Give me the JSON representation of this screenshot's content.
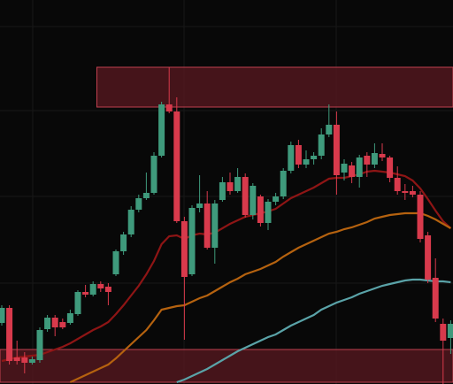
{
  "chart_data": {
    "type": "candlestick",
    "ylim": [
      0,
      434
    ],
    "up_color": "#3f9a7c",
    "down_color": "#d83a4c",
    "open": [
      69,
      86,
      30,
      30,
      24,
      27,
      62,
      75,
      70,
      69,
      79,
      104,
      101,
      113,
      110,
      124,
      150,
      169,
      197,
      210,
      216,
      258,
      316,
      308,
      184,
      124,
      199,
      204,
      154,
      208,
      228,
      218,
      234,
      191,
      212,
      182,
      206,
      212,
      241,
      270,
      248,
      254,
      258,
      282,
      293,
      239,
      247,
      234,
      258,
      248,
      260,
      256,
      233,
      218,
      218,
      214,
      168,
      120,
      68,
      52
    ],
    "high": [
      89,
      89,
      49,
      36,
      31,
      64,
      78,
      78,
      74,
      84,
      106,
      112,
      116,
      116,
      114,
      152,
      172,
      201,
      214,
      239,
      262,
      319,
      358,
      324,
      189,
      202,
      236,
      218,
      208,
      234,
      239,
      244,
      238,
      227,
      214,
      209,
      216,
      244,
      274,
      276,
      264,
      262,
      289,
      316,
      308,
      254,
      251,
      259,
      262,
      272,
      272,
      258,
      246,
      226,
      224,
      218,
      172,
      142,
      74,
      72
    ],
    "low": [
      66,
      22,
      22,
      12,
      22,
      24,
      59,
      54,
      62,
      67,
      77,
      98,
      99,
      104,
      89,
      122,
      146,
      166,
      194,
      208,
      214,
      256,
      306,
      182,
      50,
      122,
      194,
      152,
      136,
      206,
      214,
      216,
      188,
      186,
      178,
      174,
      202,
      209,
      238,
      244,
      244,
      248,
      254,
      279,
      214,
      230,
      227,
      222,
      234,
      244,
      252,
      228,
      214,
      208,
      211,
      160,
      114,
      70,
      0,
      34
    ],
    "close": [
      86,
      26,
      26,
      24,
      28,
      61,
      75,
      64,
      64,
      80,
      104,
      101,
      113,
      108,
      104,
      150,
      169,
      197,
      210,
      216,
      258,
      316,
      308,
      184,
      121,
      199,
      204,
      154,
      204,
      228,
      218,
      234,
      191,
      224,
      182,
      206,
      212,
      241,
      270,
      248,
      254,
      258,
      282,
      293,
      236,
      249,
      234,
      256,
      248,
      261,
      256,
      233,
      218,
      216,
      214,
      164,
      118,
      74,
      49,
      68
    ],
    "series": [
      {
        "color": "#8e1515",
        "values": [
          26,
          28,
          30,
          31,
          32,
          33,
          36,
          39,
          42,
          46,
          51,
          56,
          61,
          65,
          70,
          79,
          89,
          100,
          111,
          124,
          139,
          158,
          167,
          168,
          164,
          168,
          170,
          169,
          171,
          176,
          181,
          185,
          189,
          191,
          193,
          195,
          198,
          204,
          210,
          214,
          218,
          222,
          227,
          232,
          233,
          233,
          235,
          237,
          240,
          241,
          240,
          239,
          237,
          235,
          230,
          221,
          209,
          196,
          184,
          176
        ]
      },
      {
        "color": "#b5620f",
        "values": [
          null,
          null,
          null,
          null,
          null,
          null,
          null,
          null,
          null,
          2,
          6,
          10,
          14,
          18,
          22,
          29,
          37,
          45,
          53,
          61,
          72,
          84,
          86,
          88,
          89,
          93,
          97,
          100,
          105,
          110,
          115,
          119,
          124,
          127,
          130,
          134,
          138,
          144,
          149,
          154,
          158,
          162,
          166,
          170,
          172,
          175,
          177,
          180,
          183,
          187,
          189,
          191,
          192,
          193,
          193,
          193,
          190,
          186,
          181,
          176
        ]
      },
      {
        "color": "#5aa3a8",
        "values": [
          null,
          null,
          null,
          null,
          null,
          null,
          null,
          null,
          null,
          null,
          null,
          null,
          null,
          null,
          null,
          null,
          null,
          null,
          null,
          null,
          null,
          null,
          null,
          2,
          5,
          9,
          13,
          17,
          22,
          27,
          32,
          37,
          41,
          45,
          49,
          53,
          56,
          61,
          66,
          70,
          74,
          78,
          84,
          88,
          92,
          95,
          98,
          102,
          105,
          108,
          111,
          113,
          115,
          117,
          118,
          118,
          117,
          116,
          116,
          115
        ]
      }
    ],
    "zones": [
      {
        "start": 13,
        "low": 313,
        "high": 358,
        "color": "#5a1820"
      },
      {
        "start": 0,
        "low": 2,
        "high": 39,
        "color": "#5a1820"
      }
    ]
  }
}
